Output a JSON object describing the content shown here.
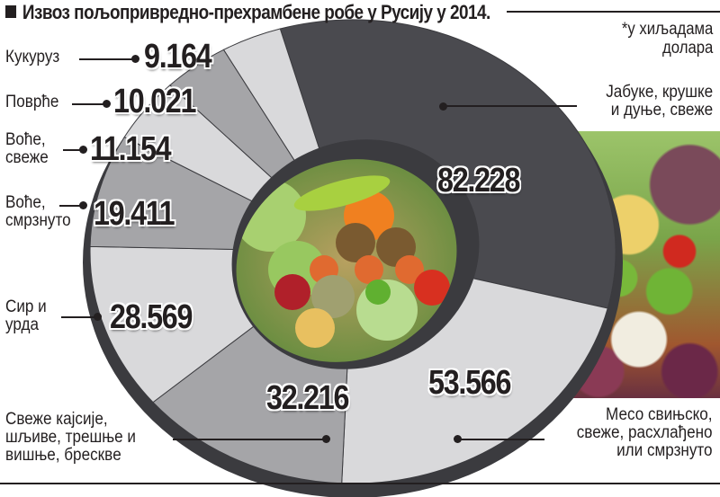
{
  "title": "Извоз пољопривредно-прехрамбене робе у Русију у 2014.",
  "unit_note": [
    "*у хиљадама",
    "долара"
  ],
  "colors": {
    "dark": "#4a4a4f",
    "mid": "#a5a5a8",
    "light": "#d9d9db",
    "rim": "#3b3b3f",
    "text": "#231f20"
  },
  "segments": [
    {
      "label": [
        "Јабуке, крушке",
        "и дуње, свеже"
      ],
      "value_text": "82.228"
    },
    {
      "label": [
        "Месо свињско,",
        "свеже, расхлађено",
        "или смрзнуто"
      ],
      "value_text": "53.566"
    },
    {
      "label": [
        "Свеже кајсије,",
        "шљиве, трешње и",
        "вишње, бресквe"
      ],
      "value_text": "32.216"
    },
    {
      "label": [
        "Сир и",
        "урда"
      ],
      "value_text": "28.569"
    },
    {
      "label": [
        "Воће,",
        "смрзнуто"
      ],
      "value_text": "19.411"
    },
    {
      "label": [
        "Воће,",
        "свеже"
      ],
      "value_text": "11.154"
    },
    {
      "label": [
        "Поврће"
      ],
      "value_text": "10.021"
    },
    {
      "label": [
        "Кукуруз"
      ],
      "value_text": "9.164"
    }
  ],
  "chart_data": {
    "type": "pie",
    "variant": "donut",
    "title": "Извоз пољопривредно-прехрамбене робе у Русију у 2014.",
    "unit": "у хиљадама долара",
    "categories": [
      "Јабуке, крушке и дуње, свеже",
      "Месо свињско, свеже, расхлађено или смрзнуто",
      "Свеже кајсије, шљиве, трешње и вишње, бресквe",
      "Сир и урда",
      "Воће, смрзнуто",
      "Воће, свеже",
      "Поврће",
      "Кукуруз"
    ],
    "values": [
      82228,
      53566,
      32216,
      28569,
      19411,
      11154,
      10021,
      9164
    ],
    "legend": "leader-line labels"
  }
}
